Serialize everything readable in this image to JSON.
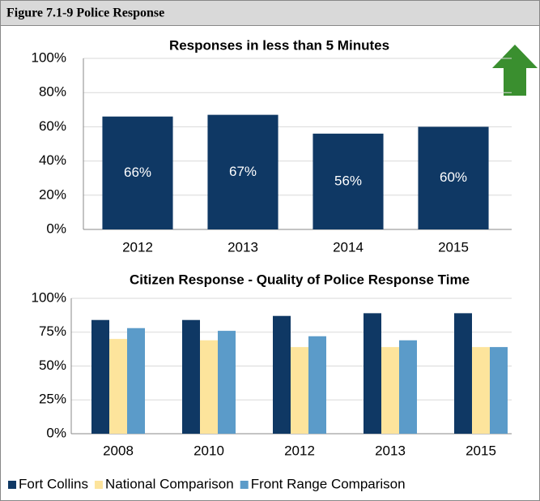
{
  "header": {
    "title": "Figure 7.1-9 Police Response"
  },
  "chart_data": [
    {
      "type": "bar",
      "title": "Responses in less than 5 Minutes",
      "categories": [
        "2012",
        "2013",
        "2014",
        "2015"
      ],
      "values": [
        66,
        67,
        56,
        60
      ],
      "value_labels": [
        "66%",
        "67%",
        "56%",
        "60%"
      ],
      "color": "#0f3864",
      "ylim": [
        0,
        100
      ],
      "yticks": [
        {
          "value": 0,
          "label": "0%"
        },
        {
          "value": 20,
          "label": "20%"
        },
        {
          "value": 40,
          "label": "40%"
        },
        {
          "value": 60,
          "label": "60%"
        },
        {
          "value": 80,
          "label": "80%"
        },
        {
          "value": 100,
          "label": "100%"
        }
      ],
      "grid": true
    },
    {
      "type": "grouped_bar",
      "title": "Citizen Response - Quality of Police Response Time",
      "categories": [
        "2008",
        "2010",
        "2012",
        "2013",
        "2015"
      ],
      "series": [
        {
          "name": "Fort Collins",
          "color": "#0f3864",
          "values": [
            84,
            84,
            87,
            89,
            89
          ]
        },
        {
          "name": "National Comparison",
          "color": "#fde49c",
          "values": [
            70,
            69,
            64,
            64,
            64
          ]
        },
        {
          "name": "Front Range Comparison",
          "color": "#5b9bc9",
          "values": [
            78,
            76,
            72,
            69,
            64
          ]
        }
      ],
      "ylim": [
        0,
        100
      ],
      "yticks": [
        {
          "value": 0,
          "label": "0%"
        },
        {
          "value": 25,
          "label": "25%"
        },
        {
          "value": 50,
          "label": "50%"
        },
        {
          "value": 75,
          "label": "75%"
        },
        {
          "value": 100,
          "label": "100%"
        }
      ],
      "grid": true,
      "legend": "bottom"
    }
  ]
}
